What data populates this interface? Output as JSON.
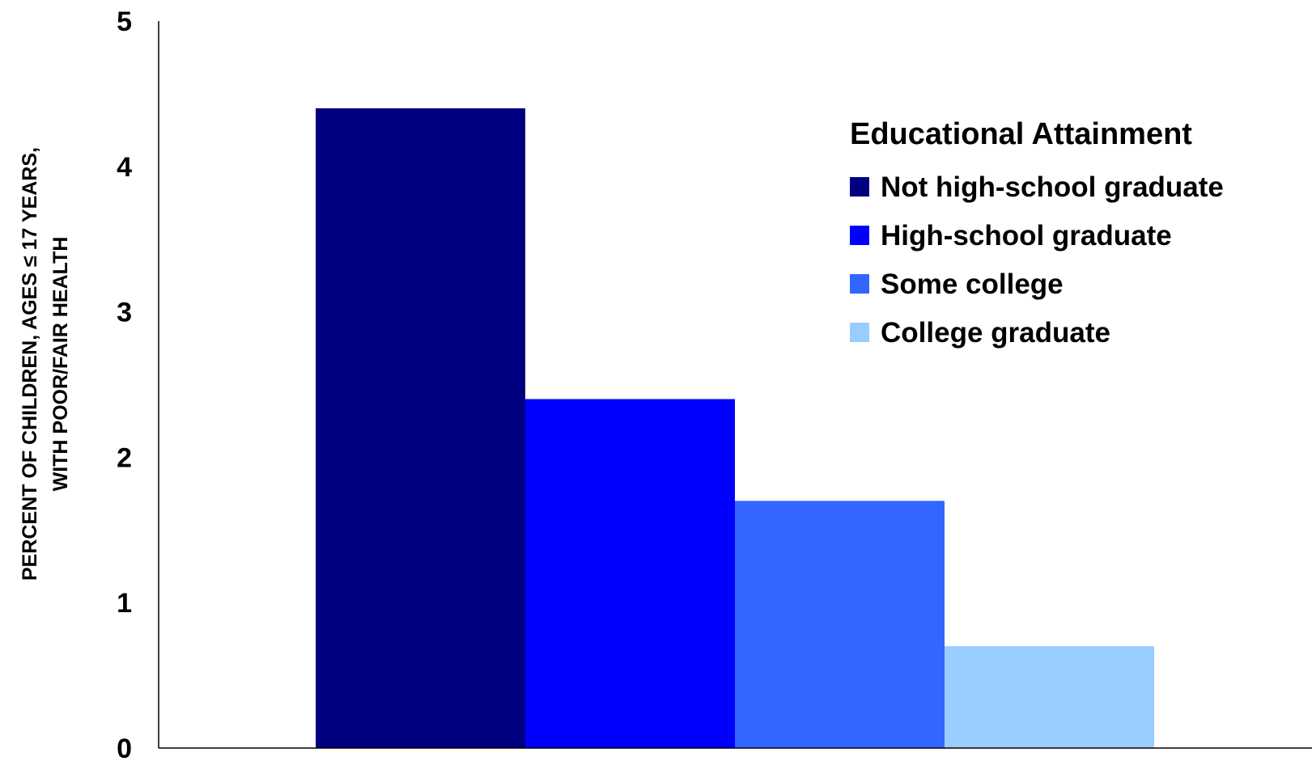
{
  "chart_data": {
    "type": "bar",
    "title": "",
    "xlabel": "",
    "ylabel_lines": [
      "PERCENT OF CHILDREN, AGES ≤ 17 YEARS,",
      "WITH POOR/FAIR HEALTH"
    ],
    "ylim": [
      0,
      5
    ],
    "yticks": [
      "0",
      "1",
      "2",
      "3",
      "4",
      "5"
    ],
    "grid": false,
    "legend": {
      "title": "Educational Attainment",
      "placement": "top-right"
    },
    "series": [
      {
        "name": "Not high-school graduate",
        "value": 4.4,
        "color": "#000080"
      },
      {
        "name": "High-school graduate",
        "value": 2.4,
        "color": "#0000FF"
      },
      {
        "name": "Some college",
        "value": 1.7,
        "color": "#3366FF"
      },
      {
        "name": "College graduate",
        "value": 0.7,
        "color": "#99CCFF"
      }
    ]
  }
}
